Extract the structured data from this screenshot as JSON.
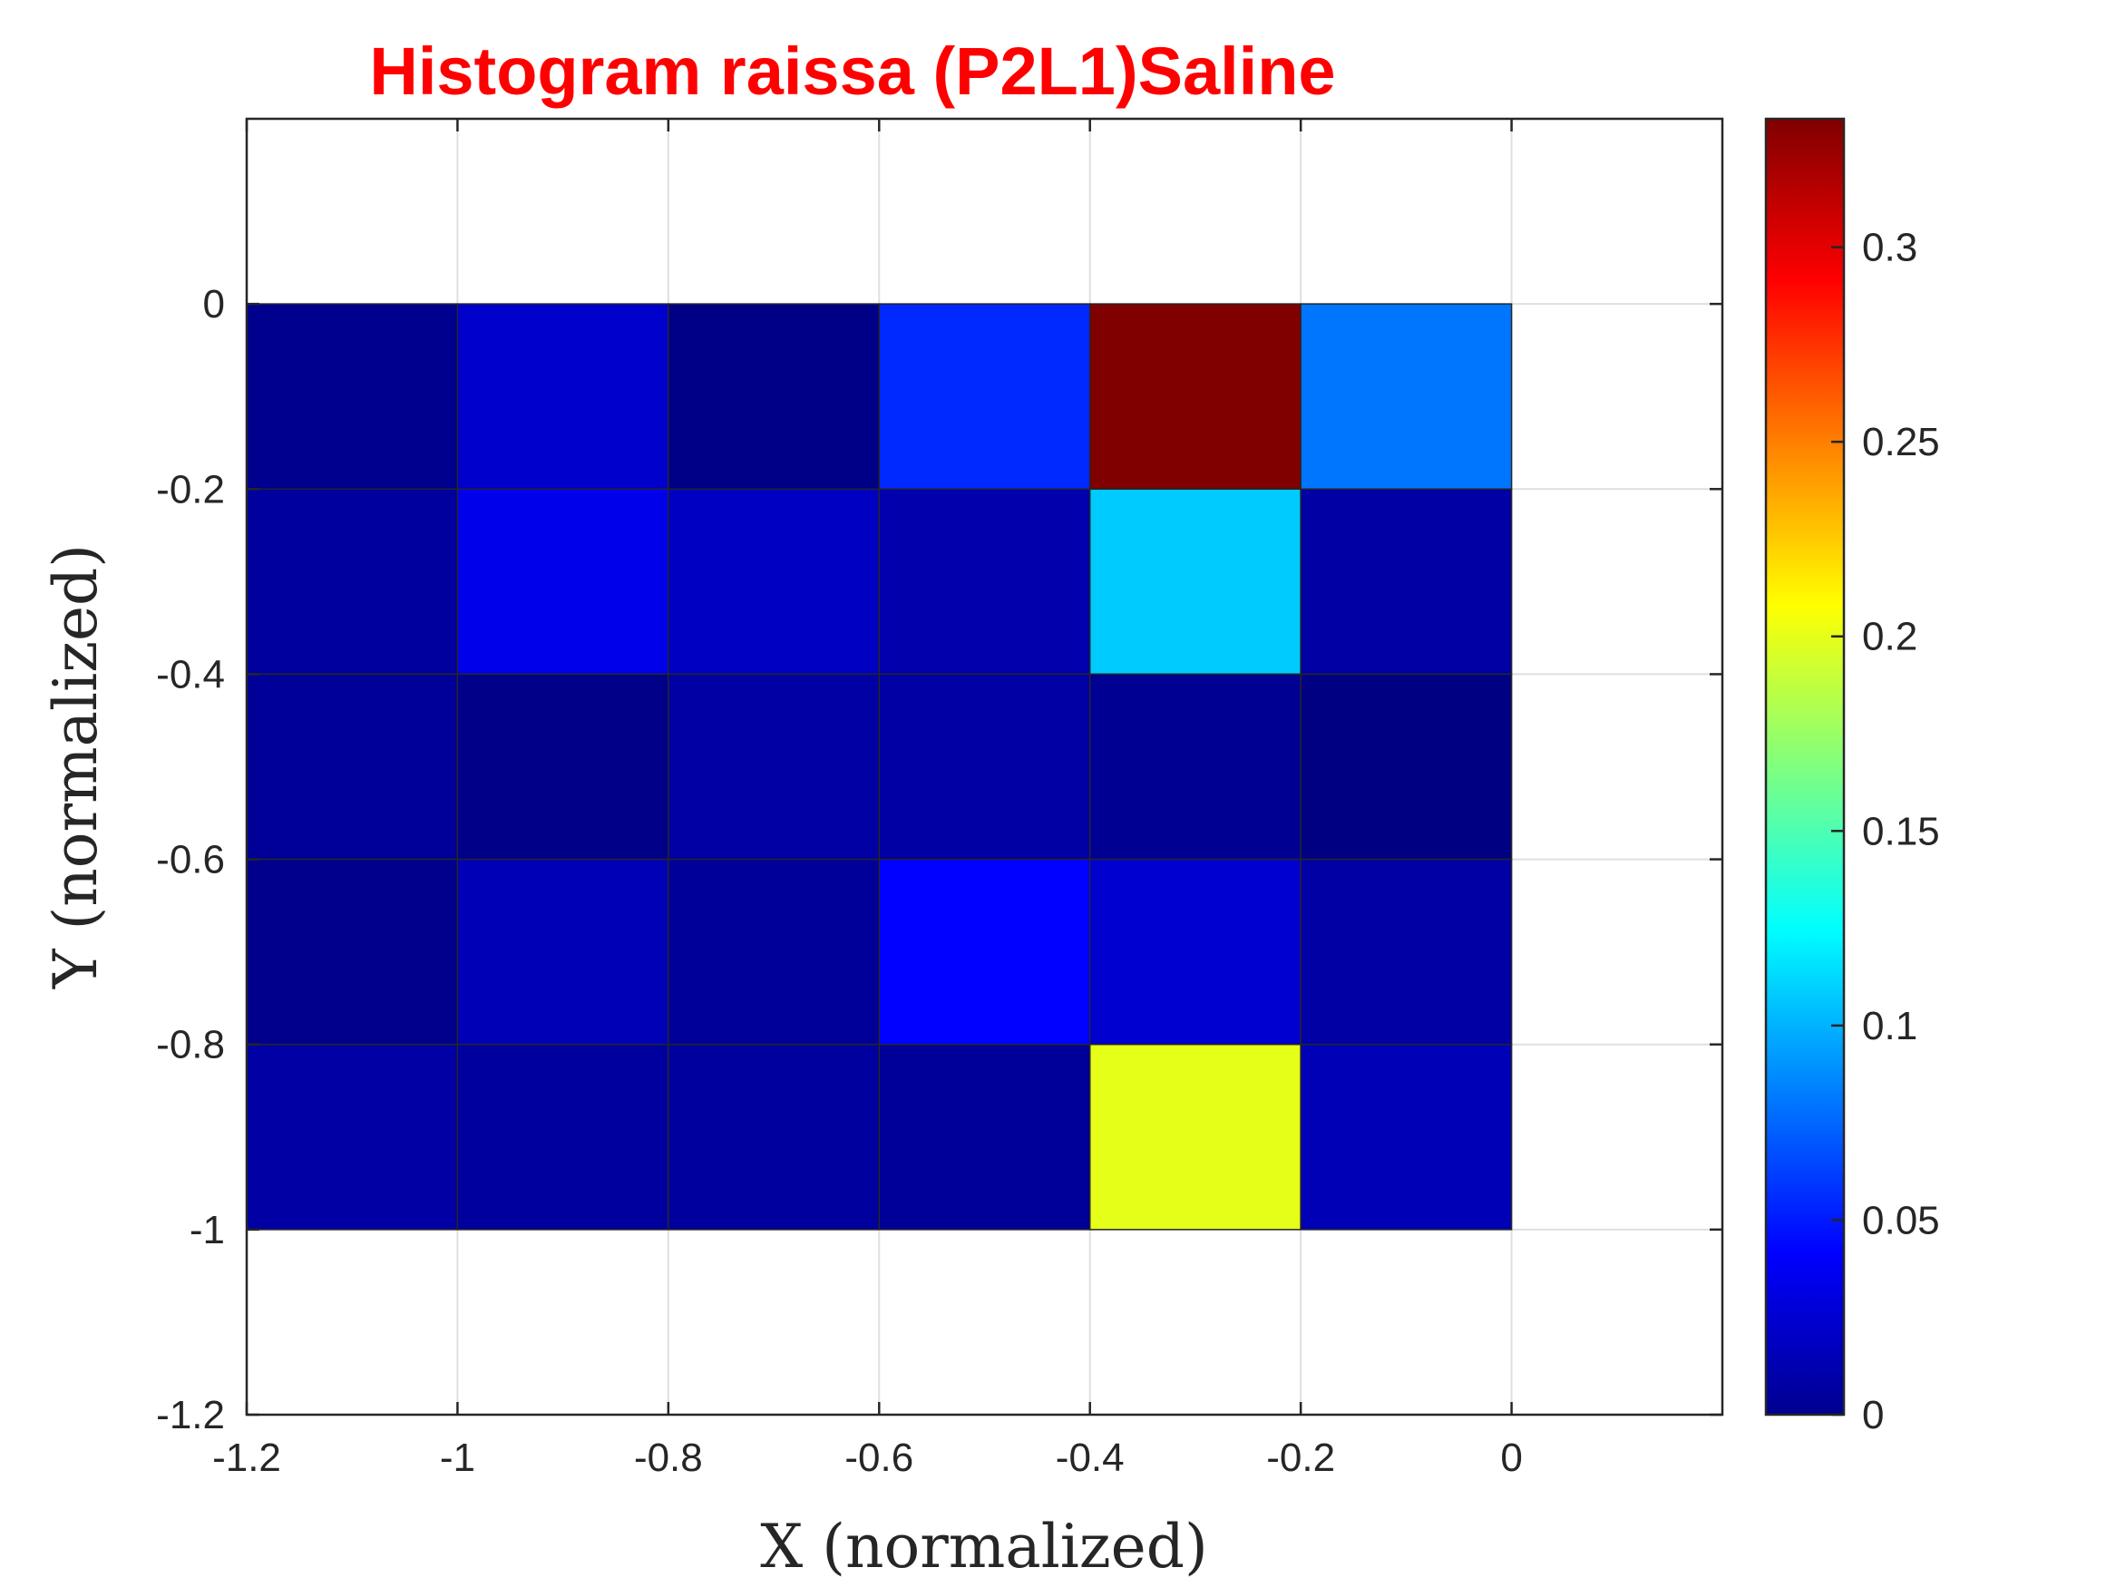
{
  "chart_data": {
    "type": "heatmap",
    "title": "Histogram raissa (P2L1)Saline",
    "title_color": "#ff0000",
    "xlabel": "X (normalized)",
    "ylabel": "Y (normalized)",
    "xlim": [
      -1.2,
      0.2
    ],
    "ylim": [
      -1.2,
      0.2
    ],
    "x_ticks": [
      -1.2,
      -1,
      -0.8,
      -0.6,
      -0.4,
      -0.2,
      0
    ],
    "x_tick_labels": [
      "-1.2",
      "-1",
      "-0.8",
      "-0.6",
      "-0.4",
      "-0.2",
      "0"
    ],
    "y_ticks": [
      -1.2,
      -1,
      -0.8,
      -0.6,
      -0.4,
      -0.2,
      0
    ],
    "y_tick_labels": [
      "-1.2",
      "-1",
      "-0.8",
      "-0.6",
      "-0.4",
      "-0.2",
      "0"
    ],
    "grid": true,
    "colormap": "jet",
    "x_edges": [
      -1.2,
      -1.0,
      -0.8,
      -0.6,
      -0.4,
      -0.2,
      0.0
    ],
    "y_edges": [
      0.0,
      -0.2,
      -0.4,
      -0.6,
      -0.8,
      -1.0
    ],
    "values": [
      [
        0.005,
        0.025,
        0.002,
        0.055,
        0.333,
        0.08
      ],
      [
        0.01,
        0.035,
        0.022,
        0.015,
        0.108,
        0.012
      ],
      [
        0.008,
        0.003,
        0.012,
        0.012,
        0.006,
        0.001
      ],
      [
        0.004,
        0.018,
        0.008,
        0.042,
        0.026,
        0.012
      ],
      [
        0.012,
        0.01,
        0.01,
        0.008,
        0.2,
        0.018
      ]
    ],
    "colorbar": {
      "min": 0,
      "max": 0.333,
      "ticks": [
        0,
        0.05,
        0.1,
        0.15,
        0.2,
        0.25,
        0.3
      ],
      "tick_labels": [
        "0",
        "0.05",
        "0.1",
        "0.15",
        "0.2",
        "0.25",
        "0.3"
      ]
    }
  }
}
